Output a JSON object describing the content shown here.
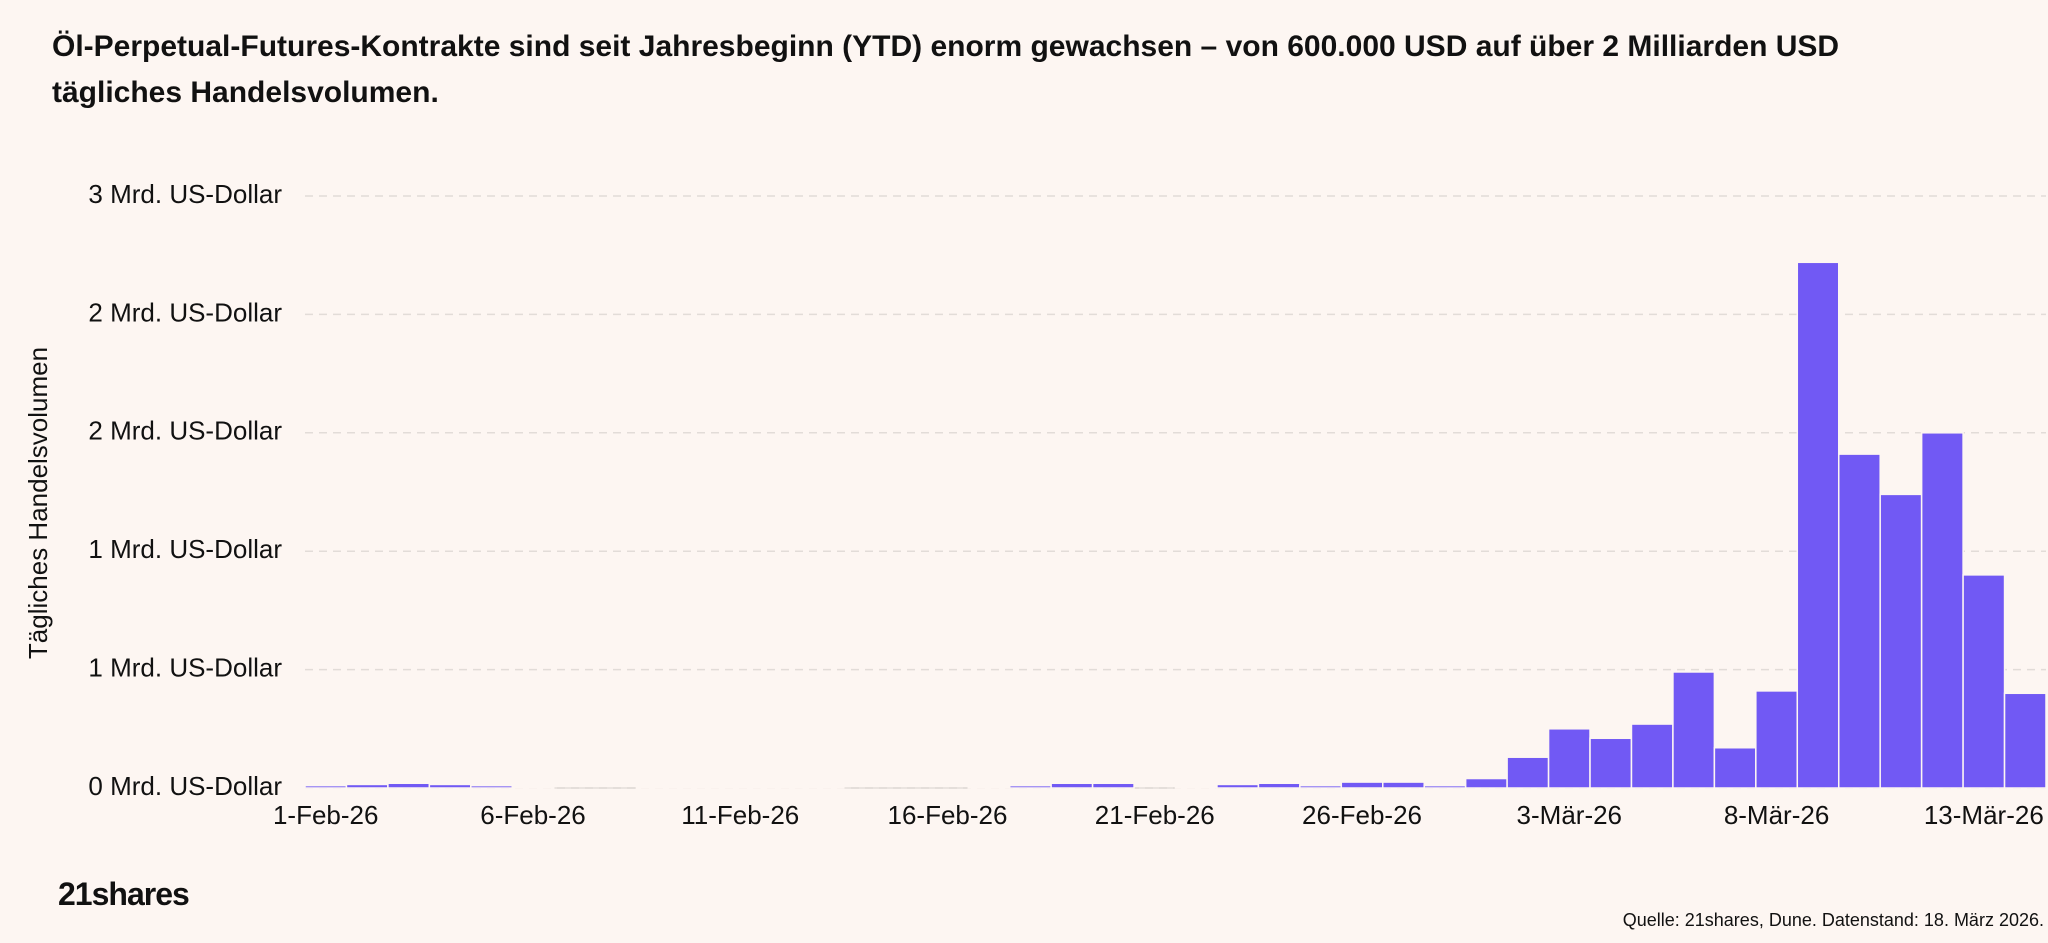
{
  "chart_data": {
    "type": "bar",
    "title": "Öl-Perpetual-Futures-Kontrakte sind seit Jahresbeginn (YTD) enorm gewachsen – von 600.000 USD auf über 2 Milliarden USD tägliches Handelsvolumen.",
    "ylabel": "Tägliches Handelsvolumen",
    "categories": [
      "1-Feb-26",
      null,
      null,
      null,
      null,
      "6-Feb-26",
      null,
      null,
      null,
      null,
      "11-Feb-26",
      null,
      null,
      null,
      null,
      "16-Feb-26",
      null,
      null,
      null,
      null,
      "21-Feb-26",
      null,
      null,
      null,
      null,
      "26-Feb-26",
      null,
      null,
      null,
      null,
      "3-Mär-26",
      null,
      null,
      null,
      null,
      "8-Mär-26",
      null,
      null,
      null,
      null,
      "13-Mär-26",
      null
    ],
    "values": [
      0.01,
      0.015,
      0.02,
      0.015,
      0.01,
      0.005,
      0,
      0,
      0.005,
      0.005,
      0.005,
      0.005,
      0.003,
      0,
      0,
      0,
      0.005,
      0.01,
      0.02,
      0.02,
      0,
      0.005,
      0.015,
      0.02,
      0.01,
      0.025,
      0.025,
      0.01,
      0.04,
      0.13,
      0.25,
      0.21,
      0.27,
      0.49,
      0.17,
      0.41,
      2.22,
      1.41,
      1.24,
      1.5,
      0.9,
      0.4
    ],
    "color": "#7159f4",
    "ylim": [
      0,
      2.5
    ],
    "yticks": [
      {
        "value": 0,
        "label": "0 Mrd. US-Dollar"
      },
      {
        "value": 0.5,
        "label": "1 Mrd. US-Dollar"
      },
      {
        "value": 1,
        "label": "1 Mrd. US-Dollar"
      },
      {
        "value": 1.5,
        "label": "2 Mrd. US-Dollar"
      },
      {
        "value": 2,
        "label": "2 Mrd. US-Dollar"
      },
      {
        "value": 2.5,
        "label": "3 Mrd. US-Dollar"
      }
    ],
    "grid": true
  },
  "logo": "21shares",
  "source": "Quelle: 21shares, Dune. Datenstand: 18. März 2026."
}
